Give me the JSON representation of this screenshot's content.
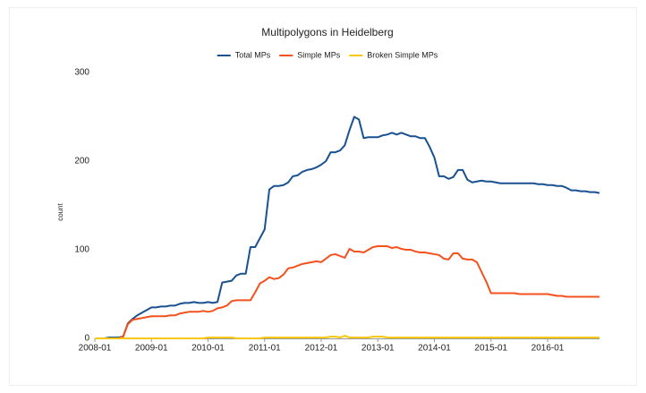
{
  "chart_data": {
    "type": "line",
    "title": "Multipolygons in Heidelberg",
    "ylabel": "count",
    "x": [
      "2008-01",
      "2008-02",
      "2008-03",
      "2008-04",
      "2008-05",
      "2008-06",
      "2008-07",
      "2008-08",
      "2008-09",
      "2008-10",
      "2008-11",
      "2008-12",
      "2009-01",
      "2009-02",
      "2009-03",
      "2009-04",
      "2009-05",
      "2009-06",
      "2009-07",
      "2009-08",
      "2009-09",
      "2009-10",
      "2009-11",
      "2009-12",
      "2010-01",
      "2010-02",
      "2010-03",
      "2010-04",
      "2010-05",
      "2010-06",
      "2010-07",
      "2010-08",
      "2010-09",
      "2010-10",
      "2010-11",
      "2010-12",
      "2011-01",
      "2011-02",
      "2011-03",
      "2011-04",
      "2011-05",
      "2011-06",
      "2011-07",
      "2011-08",
      "2011-09",
      "2011-10",
      "2011-11",
      "2011-12",
      "2012-01",
      "2012-02",
      "2012-03",
      "2012-04",
      "2012-05",
      "2012-06",
      "2012-07",
      "2012-08",
      "2012-09",
      "2012-10",
      "2012-11",
      "2012-12",
      "2013-01",
      "2013-02",
      "2013-03",
      "2013-04",
      "2013-05",
      "2013-06",
      "2013-07",
      "2013-08",
      "2013-09",
      "2013-10",
      "2013-11",
      "2013-12",
      "2014-01",
      "2014-02",
      "2014-03",
      "2014-04",
      "2014-05",
      "2014-06",
      "2014-07",
      "2014-08",
      "2014-09",
      "2014-10",
      "2014-11",
      "2014-12",
      "2015-01",
      "2015-02",
      "2015-03",
      "2015-04",
      "2015-05",
      "2015-06",
      "2015-07",
      "2015-08",
      "2015-09",
      "2015-10",
      "2015-11",
      "2015-12",
      "2016-01",
      "2016-02",
      "2016-03",
      "2016-04",
      "2016-05",
      "2016-06",
      "2016-07",
      "2016-08",
      "2016-09",
      "2016-10",
      "2016-11",
      "2016-12"
    ],
    "series": [
      {
        "name": "Total MPs",
        "color": "#1a5190",
        "values": [
          0,
          0,
          0,
          1,
          1,
          1,
          2,
          17,
          22,
          26,
          29,
          32,
          35,
          35,
          36,
          36,
          37,
          37,
          39,
          40,
          40,
          41,
          40,
          40,
          41,
          40,
          41,
          63,
          64,
          65,
          71,
          73,
          73,
          103,
          103,
          113,
          123,
          168,
          172,
          172,
          173,
          176,
          183,
          184,
          188,
          190,
          191,
          193,
          196,
          200,
          210,
          210,
          212,
          218,
          235,
          250,
          247,
          226,
          227,
          227,
          227,
          229,
          230,
          232,
          230,
          232,
          230,
          228,
          228,
          226,
          226,
          216,
          204,
          183,
          183,
          180,
          182,
          190,
          190,
          179,
          176,
          177,
          178,
          177,
          177,
          176,
          175,
          175,
          175,
          175,
          175,
          175,
          175,
          175,
          174,
          174,
          173,
          173,
          172,
          172,
          170,
          167,
          167,
          166,
          166,
          165,
          165,
          164
        ]
      },
      {
        "name": "Simple MPs",
        "color": "#f4511e",
        "values": [
          0,
          0,
          0,
          0,
          0,
          0,
          2,
          16,
          21,
          22,
          23,
          24,
          25,
          25,
          25,
          25,
          26,
          26,
          28,
          29,
          30,
          30,
          30,
          31,
          30,
          31,
          34,
          35,
          37,
          42,
          43,
          43,
          43,
          43,
          52,
          62,
          65,
          69,
          67,
          68,
          72,
          79,
          80,
          82,
          84,
          85,
          86,
          87,
          86,
          90,
          94,
          95,
          93,
          91,
          101,
          98,
          98,
          97,
          100,
          103,
          104,
          104,
          104,
          102,
          103,
          101,
          100,
          100,
          98,
          97,
          97,
          96,
          95,
          94,
          90,
          89,
          96,
          96,
          90,
          89,
          89,
          86,
          75,
          64,
          51,
          51,
          51,
          51,
          51,
          51,
          50,
          50,
          50,
          50,
          50,
          50,
          50,
          49,
          48,
          48,
          47,
          47,
          47,
          47,
          47,
          47,
          47,
          47
        ]
      },
      {
        "name": "Broken Simple MPs",
        "color": "#f9c80e",
        "values": [
          0,
          0,
          0,
          0,
          0,
          0,
          0,
          0,
          0,
          0,
          0,
          0,
          0,
          0,
          0,
          0,
          0,
          0,
          0,
          0,
          0,
          0,
          0,
          0,
          1,
          1,
          1,
          1,
          1,
          1,
          0,
          0,
          0,
          0,
          0,
          0,
          1,
          1,
          1,
          1,
          1,
          1,
          1,
          1,
          1,
          1,
          1,
          1,
          1,
          1,
          2,
          2,
          1,
          3,
          1,
          1,
          1,
          1,
          1,
          2,
          2,
          2,
          1,
          1,
          1,
          1,
          1,
          1,
          1,
          1,
          1,
          1,
          1,
          1,
          1,
          1,
          1,
          1,
          1,
          1,
          1,
          1,
          1,
          1,
          1,
          1,
          1,
          1,
          1,
          1,
          1,
          1,
          1,
          1,
          1,
          1,
          1,
          1,
          1,
          1,
          1,
          1,
          1,
          1,
          1,
          1,
          1,
          1
        ]
      }
    ],
    "xticks": [
      "2008-01",
      "2009-01",
      "2010-01",
      "2011-01",
      "2012-01",
      "2013-01",
      "2014-01",
      "2015-01",
      "2016-01"
    ],
    "ylim": [
      0,
      300
    ],
    "yticks": [
      0,
      100,
      200,
      300
    ],
    "grid": false,
    "legend": "top"
  }
}
